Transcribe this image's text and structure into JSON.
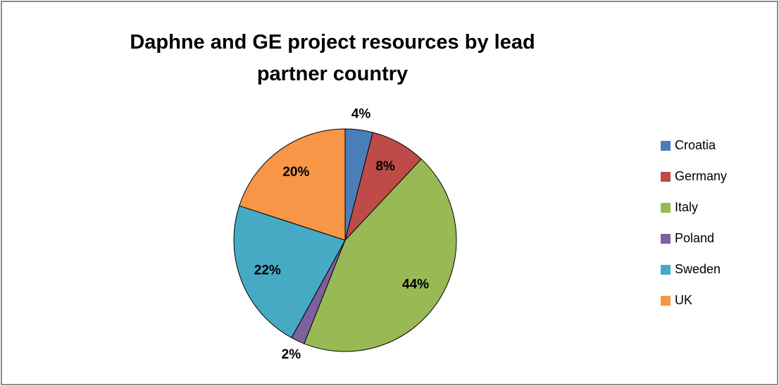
{
  "chart_data": {
    "type": "pie",
    "title": "Daphne and GE project resources by lead partner country",
    "categories": [
      "Croatia",
      "Germany",
      "Italy",
      "Poland",
      "Sweden",
      "UK"
    ],
    "values": [
      4,
      8,
      44,
      2,
      22,
      20
    ],
    "value_labels": [
      "4%",
      "8%",
      "44%",
      "2%",
      "22%",
      "20%"
    ],
    "colors": [
      "#4a7ebb",
      "#be4b48",
      "#98b954",
      "#7d60a0",
      "#46aac5",
      "#f79646"
    ],
    "legend": "right"
  }
}
